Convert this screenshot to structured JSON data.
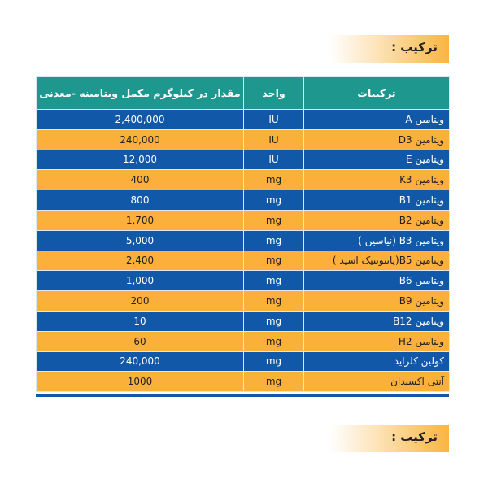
{
  "title": "ترکیب :",
  "title_bottom": "ترکیب :",
  "colors": {
    "header": "#1e978f",
    "blue_row": "#1158a8",
    "orange_row": "#fbb03b"
  },
  "table": {
    "headers": [
      "ترکیبات",
      "واحد",
      "مقدار در کیلوگرم مکمل ویتامینه -معدنی"
    ],
    "rows": [
      {
        "name": "ویتامین A",
        "unit": "IU",
        "amount": "2,400,000"
      },
      {
        "name": "ویتامین D3",
        "unit": "IU",
        "amount": "240,000"
      },
      {
        "name": "ویتامین E",
        "unit": "IU",
        "amount": "12,000"
      },
      {
        "name": "ویتامین K3",
        "unit": "mg",
        "amount": "400"
      },
      {
        "name": "ویتامین B1",
        "unit": "mg",
        "amount": "800"
      },
      {
        "name": "ویتامین B2",
        "unit": "mg",
        "amount": "1,700"
      },
      {
        "name": "ویتامین B3 (نیاسین )",
        "unit": "mg",
        "amount": "5,000"
      },
      {
        "name": "ویتامین B5(پانتوتنیک اسید )",
        "unit": "mg",
        "amount": "2,400"
      },
      {
        "name": "ویتامین B6",
        "unit": "mg",
        "amount": "1,000"
      },
      {
        "name": "ویتامین B9",
        "unit": "mg",
        "amount": "200"
      },
      {
        "name": "ویتامین B12",
        "unit": "mg",
        "amount": "10"
      },
      {
        "name": "ویتامین H2",
        "unit": "mg",
        "amount": "60"
      },
      {
        "name": "کولین کلراید",
        "unit": "mg",
        "amount": "240,000"
      },
      {
        "name": "آنتی اکسیدان",
        "unit": "mg",
        "amount": "1000"
      }
    ]
  }
}
